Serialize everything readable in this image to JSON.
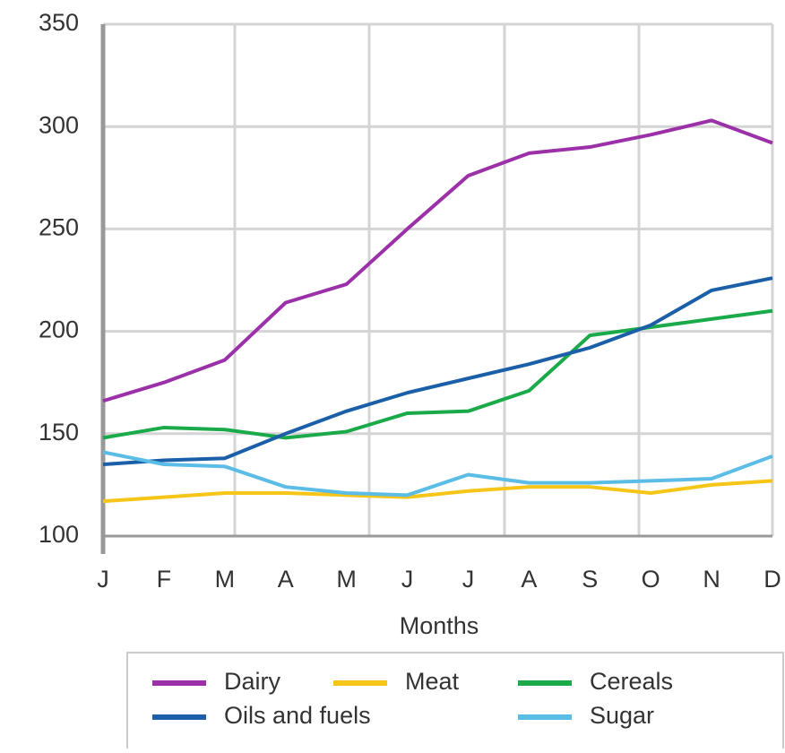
{
  "chart_data": {
    "type": "line",
    "x_label": "Months",
    "categories": [
      "J",
      "F",
      "M",
      "A",
      "M",
      "J",
      "J",
      "A",
      "S",
      "O",
      "N",
      "D"
    ],
    "series": [
      {
        "name": "Dairy",
        "color": "#9b30a8",
        "values": [
          166,
          175,
          186,
          214,
          223,
          250,
          276,
          287,
          290,
          296,
          303,
          292
        ]
      },
      {
        "name": "Meat",
        "color": "#f5c518",
        "values": [
          117,
          119,
          121,
          121,
          120,
          119,
          122,
          124,
          124,
          121,
          125,
          127
        ]
      },
      {
        "name": "Cereals",
        "color": "#1aaa4a",
        "values": [
          148,
          153,
          152,
          148,
          151,
          160,
          161,
          171,
          198,
          202,
          206,
          210
        ]
      },
      {
        "name": "Oils and fuels",
        "color": "#1a5fa8",
        "values": [
          135,
          137,
          138,
          150,
          161,
          170,
          177,
          184,
          192,
          203,
          220,
          226
        ]
      },
      {
        "name": "Sugar",
        "color": "#5bbde6",
        "values": [
          141,
          135,
          134,
          124,
          121,
          120,
          130,
          126,
          126,
          127,
          128,
          139
        ]
      }
    ],
    "ylim": [
      100,
      350
    ],
    "yticks": [
      100,
      150,
      200,
      250,
      300,
      350
    ],
    "grid": true
  }
}
